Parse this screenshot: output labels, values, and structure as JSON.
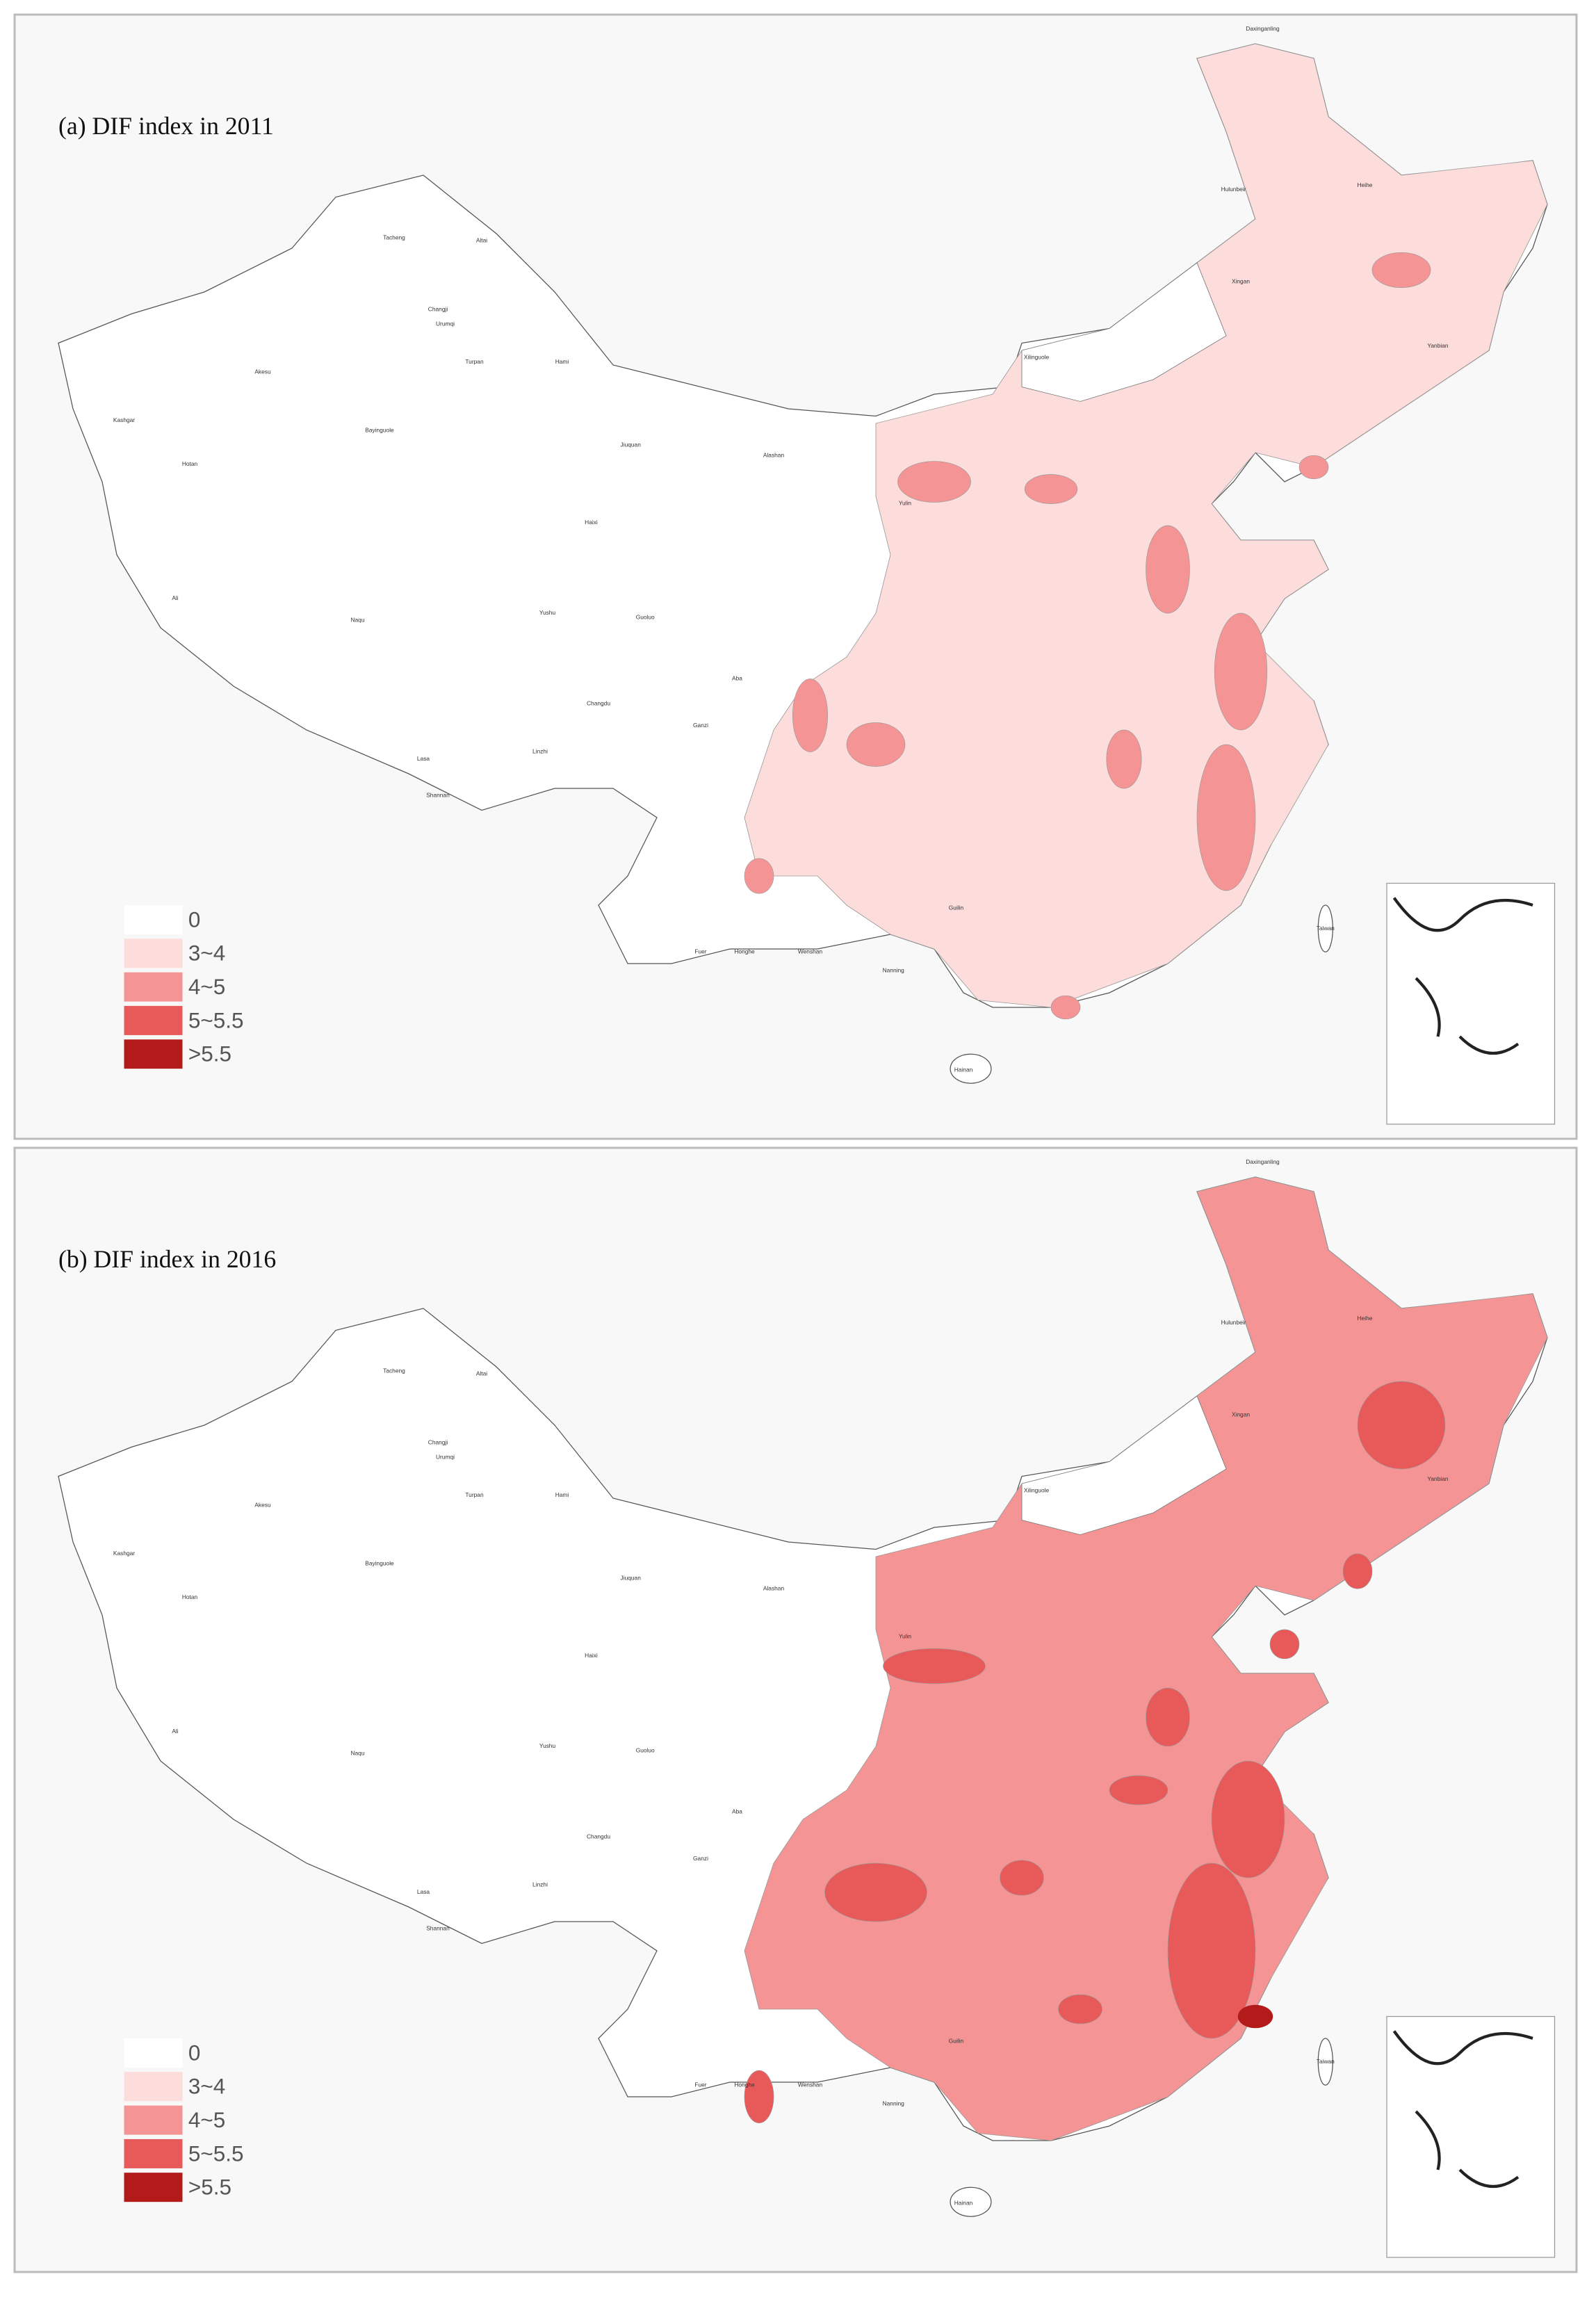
{
  "panels": [
    {
      "title": "(a) DIF index in 2011"
    },
    {
      "title": "(b) DIF index in 2016"
    }
  ],
  "legend": [
    {
      "label": "0",
      "color": "#ffffff"
    },
    {
      "label": "3~4",
      "color": "#fddcdc"
    },
    {
      "label": "4~5",
      "color": "#f59494"
    },
    {
      "label": "5~5.5",
      "color": "#e85a5a"
    },
    {
      "label": ">5.5",
      "color": "#b31b1b"
    }
  ],
  "map_labels": [
    "Daxinganling",
    "Hulunbeir",
    "Heihe",
    "Xilinguole",
    "Alashan",
    "Jiuquan",
    "Hami",
    "Turpan",
    "Altai",
    "Tacheng",
    "Changji",
    "Urumqi",
    "Bayinguole",
    "Akesu",
    "Kashgar",
    "Hotan",
    "Ali",
    "Naqu",
    "Yushu",
    "Haixi",
    "Guoluo",
    "Lasa",
    "Linzhi",
    "Shannan",
    "Changdu",
    "Ganzi",
    "Aba",
    "Fuer",
    "Honghe",
    "Wenshan",
    "Taiwan",
    "Hainan",
    "Xingan",
    "Yanbian",
    "Nanning",
    "Guilin",
    "Yulin"
  ]
}
